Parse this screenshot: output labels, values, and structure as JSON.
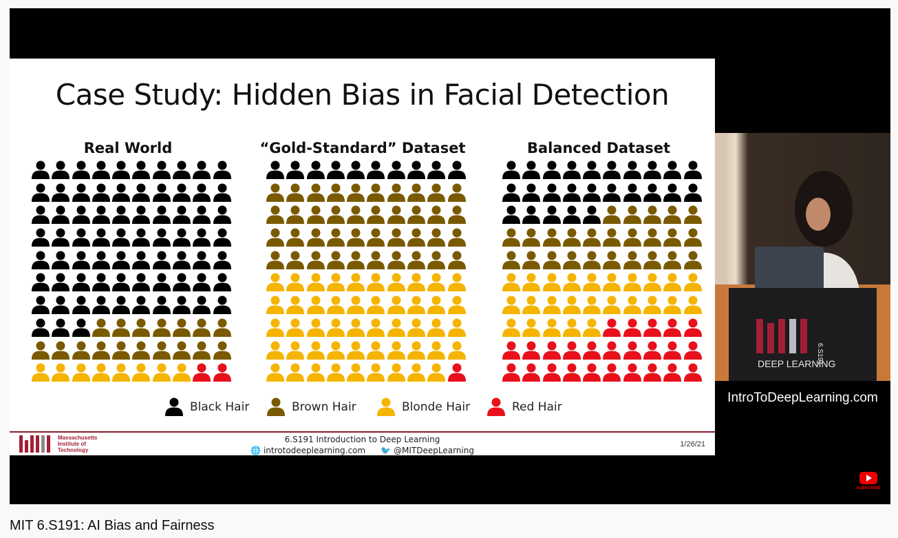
{
  "video": {
    "title": "MIT 6.S191: AI Bias and Fairness",
    "website_overlay": "IntroToDeepLearning.com",
    "subscribe_label": "SUBSCRIBE"
  },
  "slide": {
    "title": "Case Study: Hidden Bias in Facial Detection",
    "panels": [
      {
        "title": "Real World",
        "counts": {
          "black": 73,
          "brown": 17,
          "blonde": 8,
          "red": 2
        }
      },
      {
        "title": "“Gold-Standard” Dataset",
        "counts": {
          "black": 10,
          "brown": 40,
          "blonde": 49,
          "red": 1
        }
      },
      {
        "title": "Balanced Dataset",
        "counts": {
          "black": 25,
          "brown": 25,
          "blonde": 25,
          "red": 25
        }
      }
    ],
    "legend": [
      {
        "key": "black",
        "label": "Black Hair",
        "color": "#000000"
      },
      {
        "key": "brown",
        "label": "Brown Hair",
        "color": "#7a5a00"
      },
      {
        "key": "blonde",
        "label": "Blonde Hair",
        "color": "#f5b400"
      },
      {
        "key": "red",
        "label": "Red Hair",
        "color": "#e8101a"
      }
    ],
    "footer": {
      "institution": [
        "Massachusetts",
        "Institute of",
        "Technology"
      ],
      "course": "6.S191 Introduction to Deep Learning",
      "website": "introtodeeplearning.com",
      "twitter": "@MITDeepLearning",
      "date": "1/26/21"
    }
  },
  "webcam": {
    "podium_text_1": "DEEP LEARNING",
    "podium_text_2": "6.S191"
  }
}
